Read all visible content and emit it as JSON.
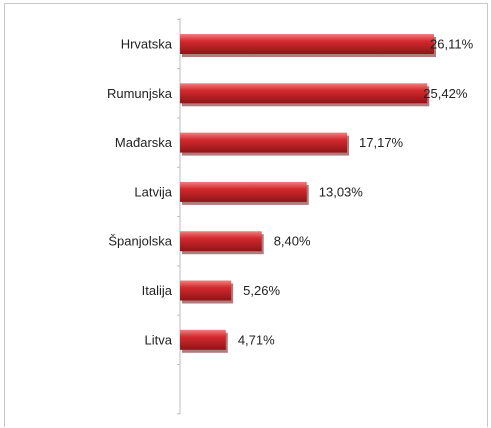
{
  "chart_data": {
    "type": "bar",
    "orientation": "horizontal",
    "categories": [
      "Hrvatska",
      "Rumunjska",
      "Mađarska",
      "Latvija",
      "Španjolska",
      "Italija",
      "Litva"
    ],
    "values": [
      26.11,
      25.42,
      17.17,
      13.03,
      8.4,
      5.26,
      4.71
    ],
    "value_labels": [
      "26,11%",
      "25,42%",
      "17,17%",
      "13,03%",
      "8,40%",
      "5,26%",
      "4,71%"
    ],
    "xlim": [
      0,
      26.11
    ],
    "grid": false,
    "legend": "none",
    "bar_color": "#d42a2e",
    "bar_color_dark": "#8e1517",
    "bar_color_light": "#f08080"
  }
}
